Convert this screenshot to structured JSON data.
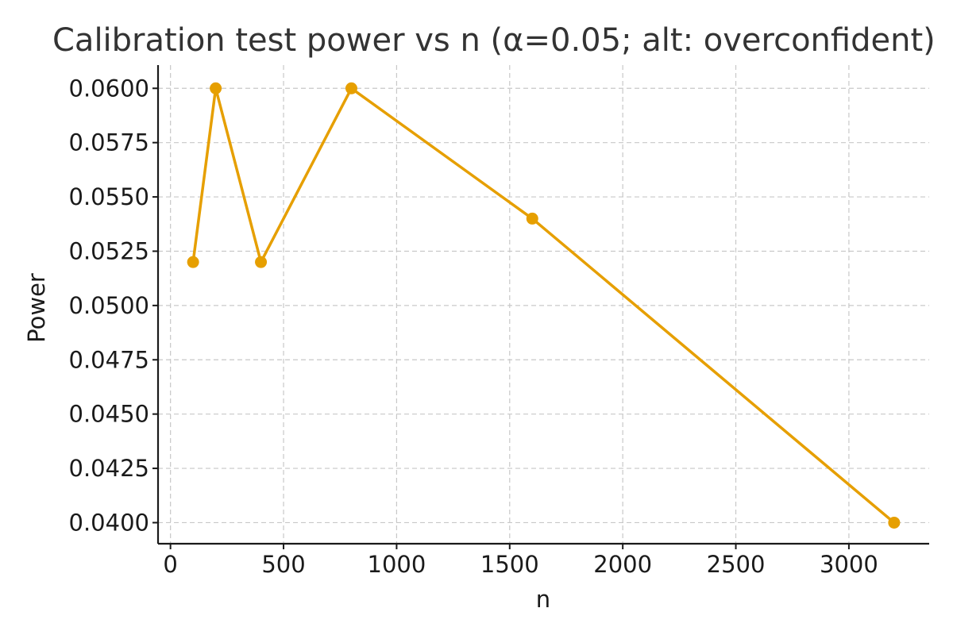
{
  "chart_data": {
    "type": "line",
    "title": "Calibration test power vs n (α=0.05; alt: overconfident)",
    "xlabel": "n",
    "ylabel": "Power",
    "x": [
      100,
      200,
      400,
      800,
      1600,
      3200
    ],
    "series": [
      {
        "values": [
          0.052,
          0.06,
          0.052,
          0.06,
          0.054,
          0.04
        ],
        "color": "#E69F00"
      }
    ],
    "xlim": [
      -55,
      3355
    ],
    "ylim": [
      0.03903,
      0.06107
    ],
    "xticks": [
      0,
      500,
      1000,
      1500,
      2000,
      2500,
      3000
    ],
    "xtick_labels": [
      "0",
      "500",
      "1000",
      "1500",
      "2000",
      "2500",
      "3000"
    ],
    "yticks": [
      0.04,
      0.0425,
      0.045,
      0.0475,
      0.05,
      0.0525,
      0.055,
      0.0575,
      0.06
    ],
    "ytick_labels": [
      "0.0400",
      "0.0425",
      "0.0450",
      "0.0475",
      "0.0500",
      "0.0525",
      "0.0550",
      "0.0575",
      "0.0600"
    ],
    "grid": true,
    "legend": "none"
  }
}
